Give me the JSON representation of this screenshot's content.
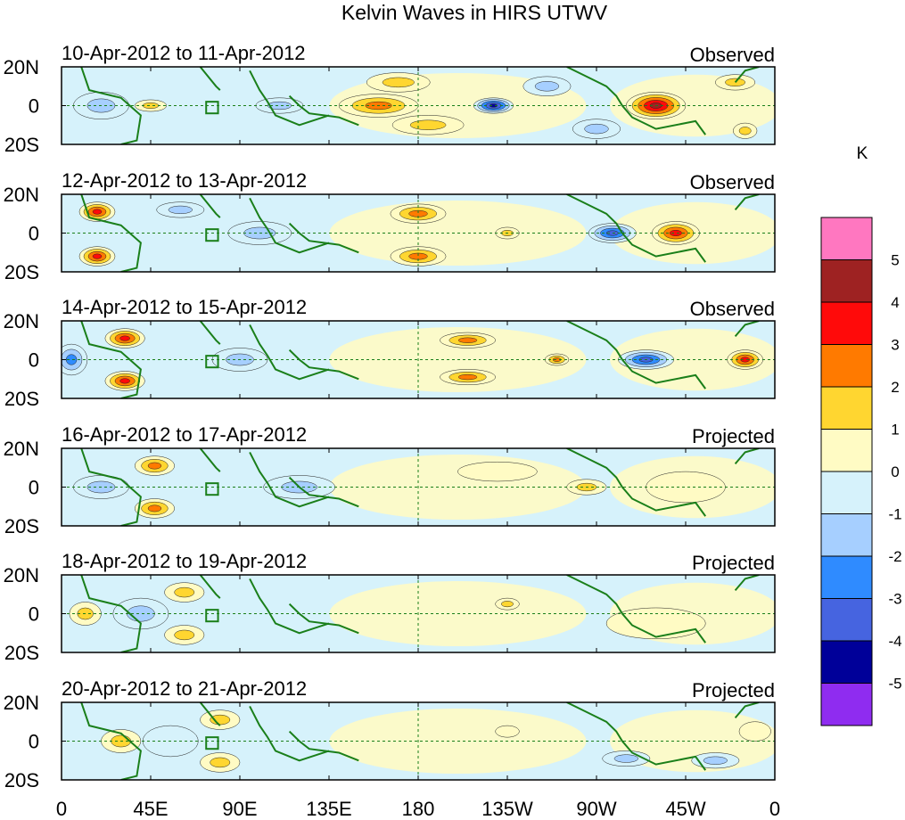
{
  "chart_data": {
    "type": "heatmap",
    "title": "Kelvin Waves in HIRS UTWV",
    "units": "K",
    "x_range": [
      0,
      360
    ],
    "y_range": [
      -20,
      20
    ],
    "x_ticks": [
      {
        "lon": 0,
        "label": "0"
      },
      {
        "lon": 45,
        "label": "45E"
      },
      {
        "lon": 90,
        "label": "90E"
      },
      {
        "lon": 135,
        "label": "135E"
      },
      {
        "lon": 180,
        "label": "180"
      },
      {
        "lon": 225,
        "label": "135W"
      },
      {
        "lon": 270,
        "label": "90W"
      },
      {
        "lon": 315,
        "label": "45W"
      },
      {
        "lon": 360,
        "label": "0"
      }
    ],
    "y_ticks": [
      {
        "lat": 20,
        "label": "20N"
      },
      {
        "lat": 0,
        "label": "0"
      },
      {
        "lat": -20,
        "label": "20S"
      }
    ],
    "colorbar": {
      "levels": [
        5,
        4,
        3,
        2,
        1,
        0,
        -1,
        -2,
        -3,
        -4,
        -5
      ],
      "colors": [
        "#ff77c0",
        "#9e2222",
        "#ff0a0a",
        "#ff7a00",
        "#ffd630",
        "#fffbc4",
        "#d6f2fb",
        "#a6cfff",
        "#2f8bff",
        "#4664e0",
        "#000099",
        "#8f2cf0"
      ]
    },
    "panels": [
      {
        "dates": "10-Apr-2012 to 11-Apr-2012",
        "status": "Observed",
        "anomalies": [
          {
            "lon": 300,
            "lat": 0,
            "value": 4.5,
            "r_lon": 15,
            "r_lat": 7
          },
          {
            "lon": 218,
            "lat": 0,
            "value": -4.5,
            "r_lon": 10,
            "r_lat": 4
          },
          {
            "lon": 160,
            "lat": 0,
            "value": 2.2,
            "r_lon": 20,
            "r_lat": 6
          },
          {
            "lon": 170,
            "lat": 12,
            "value": 2.0,
            "r_lon": 16,
            "r_lat": 5
          },
          {
            "lon": 185,
            "lat": -10,
            "value": 1.5,
            "r_lon": 18,
            "r_lat": 5
          },
          {
            "lon": 45,
            "lat": 0,
            "value": 2.0,
            "r_lon": 8,
            "r_lat": 3
          },
          {
            "lon": 20,
            "lat": 0,
            "value": -2.0,
            "r_lon": 14,
            "r_lat": 7
          },
          {
            "lon": 110,
            "lat": 0,
            "value": -2.0,
            "r_lon": 12,
            "r_lat": 4
          },
          {
            "lon": 245,
            "lat": 10,
            "value": -2.0,
            "r_lon": 12,
            "r_lat": 5
          },
          {
            "lon": 340,
            "lat": 12,
            "value": 1.5,
            "r_lon": 10,
            "r_lat": 4
          },
          {
            "lon": 345,
            "lat": -13,
            "value": 1.8,
            "r_lon": 6,
            "r_lat": 4
          },
          {
            "lon": 270,
            "lat": -12,
            "value": -1.8,
            "r_lon": 12,
            "r_lat": 5
          }
        ]
      },
      {
        "dates": "12-Apr-2012 to 13-Apr-2012",
        "status": "Observed",
        "anomalies": [
          {
            "lon": 18,
            "lat": 11,
            "value": 3.6,
            "r_lon": 9,
            "r_lat": 5
          },
          {
            "lon": 18,
            "lat": -12,
            "value": 3.6,
            "r_lon": 9,
            "r_lat": 5
          },
          {
            "lon": 310,
            "lat": 0,
            "value": 3.6,
            "r_lon": 12,
            "r_lat": 6
          },
          {
            "lon": 278,
            "lat": 0,
            "value": -3.8,
            "r_lon": 12,
            "r_lat": 5
          },
          {
            "lon": 180,
            "lat": 10,
            "value": 2.6,
            "r_lon": 14,
            "r_lat": 5
          },
          {
            "lon": 180,
            "lat": -12,
            "value": 2.6,
            "r_lon": 14,
            "r_lat": 5
          },
          {
            "lon": 225,
            "lat": 0,
            "value": 1.6,
            "r_lon": 6,
            "r_lat": 3
          },
          {
            "lon": 100,
            "lat": 0,
            "value": -2.0,
            "r_lon": 16,
            "r_lat": 6
          },
          {
            "lon": 60,
            "lat": 12,
            "value": -1.6,
            "r_lon": 12,
            "r_lat": 4
          }
        ]
      },
      {
        "dates": "14-Apr-2012 to 15-Apr-2012",
        "status": "Observed",
        "anomalies": [
          {
            "lon": 32,
            "lat": 11,
            "value": 3.8,
            "r_lon": 10,
            "r_lat": 5
          },
          {
            "lon": 32,
            "lat": -11,
            "value": 3.8,
            "r_lon": 10,
            "r_lat": 5
          },
          {
            "lon": 345,
            "lat": 0,
            "value": 3.4,
            "r_lon": 9,
            "r_lat": 5
          },
          {
            "lon": 295,
            "lat": 0,
            "value": -3.2,
            "r_lon": 14,
            "r_lat": 5
          },
          {
            "lon": 205,
            "lat": 10,
            "value": 2.4,
            "r_lon": 14,
            "r_lat": 4
          },
          {
            "lon": 205,
            "lat": -9,
            "value": 2.4,
            "r_lon": 14,
            "r_lat": 4
          },
          {
            "lon": 250,
            "lat": 0,
            "value": 2.6,
            "r_lon": 6,
            "r_lat": 3
          },
          {
            "lon": 5,
            "lat": 0,
            "value": -2.5,
            "r_lon": 8,
            "r_lat": 8
          },
          {
            "lon": 90,
            "lat": 0,
            "value": -1.8,
            "r_lon": 14,
            "r_lat": 6
          }
        ]
      },
      {
        "dates": "16-Apr-2012 to 17-Apr-2012",
        "status": "Projected",
        "anomalies": [
          {
            "lon": 47,
            "lat": 11,
            "value": 3.0,
            "r_lon": 10,
            "r_lat": 5
          },
          {
            "lon": 47,
            "lat": -11,
            "value": 3.0,
            "r_lon": 10,
            "r_lat": 5
          },
          {
            "lon": 20,
            "lat": 0,
            "value": -2.0,
            "r_lon": 14,
            "r_lat": 6
          },
          {
            "lon": 120,
            "lat": 0,
            "value": -1.8,
            "r_lon": 18,
            "r_lat": 6
          },
          {
            "lon": 265,
            "lat": 0,
            "value": 1.4,
            "r_lon": 10,
            "r_lat": 4
          },
          {
            "lon": 220,
            "lat": 8,
            "value": 0.8,
            "r_lon": 20,
            "r_lat": 5
          },
          {
            "lon": 315,
            "lat": 0,
            "value": 0.8,
            "r_lon": 20,
            "r_lat": 8
          }
        ]
      },
      {
        "dates": "18-Apr-2012 to 19-Apr-2012",
        "status": "Projected",
        "anomalies": [
          {
            "lon": 62,
            "lat": 11,
            "value": 1.6,
            "r_lon": 10,
            "r_lat": 5
          },
          {
            "lon": 62,
            "lat": -11,
            "value": 1.6,
            "r_lon": 10,
            "r_lat": 5
          },
          {
            "lon": 12,
            "lat": 0,
            "value": 1.2,
            "r_lon": 8,
            "r_lat": 6
          },
          {
            "lon": 40,
            "lat": 0,
            "value": -1.5,
            "r_lon": 14,
            "r_lat": 8
          },
          {
            "lon": 225,
            "lat": 5,
            "value": 1.2,
            "r_lon": 6,
            "r_lat": 3
          },
          {
            "lon": 300,
            "lat": -5,
            "value": 0.6,
            "r_lon": 25,
            "r_lat": 8
          }
        ]
      },
      {
        "dates": "20-Apr-2012 to 21-Apr-2012",
        "status": "Projected",
        "anomalies": [
          {
            "lon": 80,
            "lat": 11,
            "value": 1.4,
            "r_lon": 10,
            "r_lat": 5
          },
          {
            "lon": 80,
            "lat": -11,
            "value": 1.4,
            "r_lon": 10,
            "r_lat": 5
          },
          {
            "lon": 30,
            "lat": 0,
            "value": 1.2,
            "r_lon": 10,
            "r_lat": 6
          },
          {
            "lon": 55,
            "lat": 0,
            "value": -1.0,
            "r_lon": 14,
            "r_lat": 8
          },
          {
            "lon": 225,
            "lat": 5,
            "value": 1.0,
            "r_lon": 6,
            "r_lat": 3
          },
          {
            "lon": 285,
            "lat": -9,
            "value": -1.4,
            "r_lon": 12,
            "r_lat": 4
          },
          {
            "lon": 330,
            "lat": -10,
            "value": -1.2,
            "r_lon": 12,
            "r_lat": 4
          },
          {
            "lon": 350,
            "lat": 5,
            "value": 1.0,
            "r_lon": 8,
            "r_lat": 5
          }
        ]
      }
    ]
  }
}
